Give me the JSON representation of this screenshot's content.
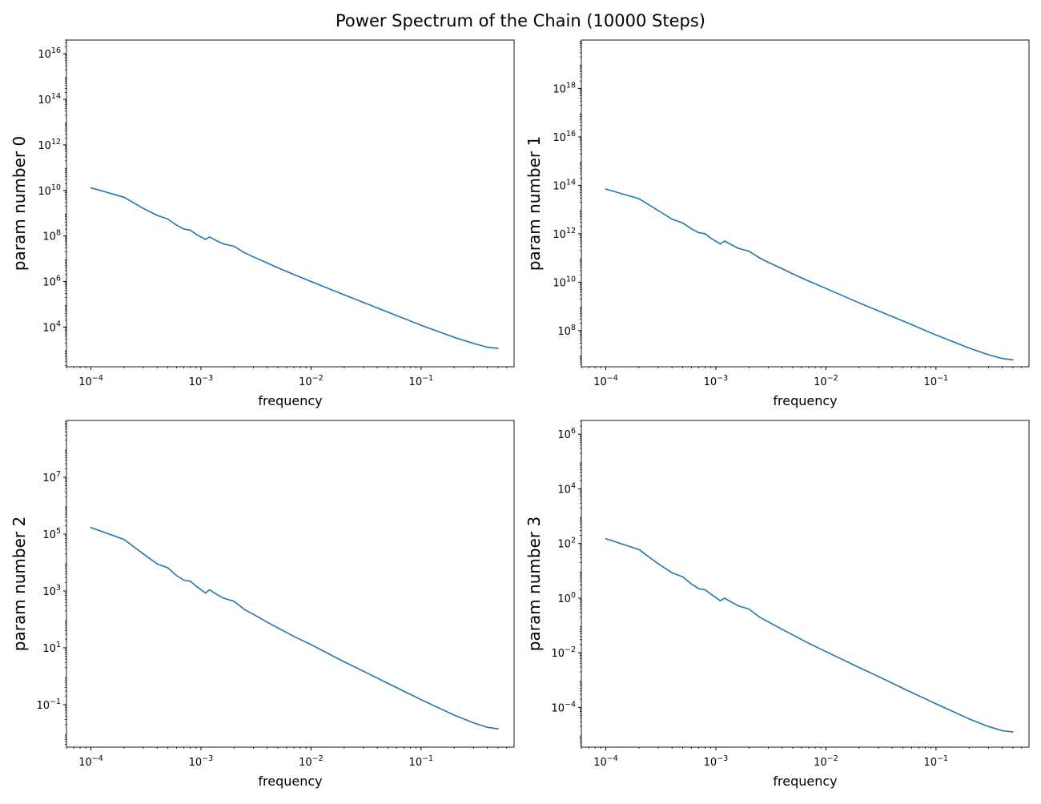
{
  "figure_title": "Power Spectrum of the Chain (10000 Steps)",
  "colors": {
    "line": "#1f77b4",
    "axes": "#000000",
    "background": "#ffffff"
  },
  "chart_data": [
    {
      "type": "line",
      "scale": "log-log",
      "xlabel": "frequency",
      "ylabel": "param number 0",
      "xlim": [
        6e-05,
        0.7
      ],
      "ylim": [
        180,
        40000000000000000
      ],
      "x_ticks": [
        {
          "value": 0.0001,
          "base": "10",
          "exp": "−4"
        },
        {
          "value": 0.001,
          "base": "10",
          "exp": "−3"
        },
        {
          "value": 0.01,
          "base": "10",
          "exp": "−2"
        },
        {
          "value": 0.1,
          "base": "10",
          "exp": "−1"
        }
      ],
      "y_ticks": [
        {
          "value": 10000,
          "base": "10",
          "exp": "4"
        },
        {
          "value": 1000000,
          "base": "10",
          "exp": "6"
        },
        {
          "value": 100000000,
          "base": "10",
          "exp": "8"
        },
        {
          "value": 10000000000,
          "base": "10",
          "exp": "10"
        },
        {
          "value": 1000000000000,
          "base": "10",
          "exp": "12"
        },
        {
          "value": 100000000000000,
          "base": "10",
          "exp": "14"
        },
        {
          "value": 10000000000000000,
          "base": "10",
          "exp": "16"
        }
      ],
      "series": [
        {
          "x": [
            0.0001,
            0.0002,
            0.0003,
            0.0004,
            0.0005,
            0.0006,
            0.0007,
            0.0008,
            0.0009,
            0.0011,
            0.0012,
            0.0014,
            0.0016,
            0.002,
            0.0025,
            0.003,
            0.004,
            0.005,
            0.007,
            0.01,
            0.02,
            0.03,
            0.05,
            0.1,
            0.2,
            0.3,
            0.4,
            0.5
          ],
          "y": [
            13000000000,
            5000000000,
            1600000000,
            800000000,
            550000000,
            300000000,
            200000000,
            180000000,
            120000000,
            70000000,
            90000000,
            60000000,
            45000000,
            35000000,
            18000000,
            12000000,
            6500000,
            4000000,
            2000000,
            1000000,
            260000,
            120000,
            45000,
            12000,
            3500,
            1900,
            1300,
            1150
          ]
        }
      ]
    },
    {
      "type": "line",
      "scale": "log-log",
      "xlabel": "frequency",
      "ylabel": "param number 1",
      "xlim": [
        6e-05,
        0.7
      ],
      "ylim": [
        3200000,
        100000000000000000000
      ],
      "x_ticks": [
        {
          "value": 0.0001,
          "base": "10",
          "exp": "−4"
        },
        {
          "value": 0.001,
          "base": "10",
          "exp": "−3"
        },
        {
          "value": 0.01,
          "base": "10",
          "exp": "−2"
        },
        {
          "value": 0.1,
          "base": "10",
          "exp": "−1"
        }
      ],
      "y_ticks": [
        {
          "value": 100000000,
          "base": "10",
          "exp": "8"
        },
        {
          "value": 10000000000,
          "base": "10",
          "exp": "10"
        },
        {
          "value": 1000000000000,
          "base": "10",
          "exp": "12"
        },
        {
          "value": 100000000000000,
          "base": "10",
          "exp": "14"
        },
        {
          "value": 10000000000000000,
          "base": "10",
          "exp": "16"
        },
        {
          "value": 1000000000000000000,
          "base": "10",
          "exp": "18"
        }
      ],
      "series": [
        {
          "x": [
            0.0001,
            0.0002,
            0.0003,
            0.0004,
            0.0005,
            0.0006,
            0.0007,
            0.0008,
            0.0009,
            0.0011,
            0.0012,
            0.0014,
            0.0016,
            0.002,
            0.0025,
            0.003,
            0.004,
            0.005,
            0.007,
            0.01,
            0.02,
            0.03,
            0.05,
            0.1,
            0.2,
            0.3,
            0.4,
            0.5
          ],
          "y": [
            70000000000000,
            28000000000000,
            9000000000000,
            4000000000000,
            2800000000000,
            1600000000000,
            1100000000000,
            1000000000000,
            650000000000,
            380000000000,
            500000000000,
            340000000000,
            250000000000,
            190000000000,
            100000000000,
            66000000000,
            36000000000,
            22000000000,
            11000000000,
            5500000000,
            1400000000,
            650000000,
            250000000,
            66000000,
            19000000,
            10000000,
            7000000,
            6200000
          ]
        }
      ]
    },
    {
      "type": "line",
      "scale": "log-log",
      "xlabel": "frequency",
      "ylabel": "param number 2",
      "xlim": [
        6e-05,
        0.7
      ],
      "ylim": [
        0.0032,
        1000000000
      ],
      "x_ticks": [
        {
          "value": 0.0001,
          "base": "10",
          "exp": "−4"
        },
        {
          "value": 0.001,
          "base": "10",
          "exp": "−3"
        },
        {
          "value": 0.01,
          "base": "10",
          "exp": "−2"
        },
        {
          "value": 0.1,
          "base": "10",
          "exp": "−1"
        }
      ],
      "y_ticks": [
        {
          "value": 0.1,
          "base": "10",
          "exp": "−1"
        },
        {
          "value": 10,
          "base": "10",
          "exp": "1"
        },
        {
          "value": 1000,
          "base": "10",
          "exp": "3"
        },
        {
          "value": 100000,
          "base": "10",
          "exp": "5"
        },
        {
          "value": 10000000,
          "base": "10",
          "exp": "7"
        }
      ],
      "series": [
        {
          "x": [
            0.0001,
            0.0002,
            0.0003,
            0.0004,
            0.0005,
            0.0006,
            0.0007,
            0.0008,
            0.0009,
            0.0011,
            0.0012,
            0.0014,
            0.0016,
            0.002,
            0.0025,
            0.003,
            0.004,
            0.005,
            0.007,
            0.01,
            0.02,
            0.03,
            0.05,
            0.1,
            0.2,
            0.3,
            0.4,
            0.5
          ],
          "y": [
            170000,
            65000,
            20000,
            9000,
            6500,
            3500,
            2400,
            2200,
            1500,
            850,
            1100,
            750,
            560,
            430,
            220,
            150,
            80,
            50,
            25,
            13,
            3.2,
            1.5,
            0.56,
            0.15,
            0.043,
            0.023,
            0.016,
            0.014
          ]
        }
      ]
    },
    {
      "type": "line",
      "scale": "log-log",
      "xlabel": "frequency",
      "ylabel": "param number 3",
      "xlim": [
        6e-05,
        0.7
      ],
      "ylim": [
        3.5e-06,
        3200000
      ],
      "x_ticks": [
        {
          "value": 0.0001,
          "base": "10",
          "exp": "−4"
        },
        {
          "value": 0.001,
          "base": "10",
          "exp": "−3"
        },
        {
          "value": 0.01,
          "base": "10",
          "exp": "−2"
        },
        {
          "value": 0.1,
          "base": "10",
          "exp": "−1"
        }
      ],
      "y_ticks": [
        {
          "value": 0.0001,
          "base": "10",
          "exp": "−4"
        },
        {
          "value": 0.01,
          "base": "10",
          "exp": "−2"
        },
        {
          "value": 1,
          "base": "10",
          "exp": "0"
        },
        {
          "value": 100,
          "base": "10",
          "exp": "2"
        },
        {
          "value": 10000,
          "base": "10",
          "exp": "4"
        },
        {
          "value": 1000000,
          "base": "10",
          "exp": "6"
        }
      ],
      "series": [
        {
          "x": [
            0.0001,
            0.0002,
            0.0003,
            0.0004,
            0.0005,
            0.0006,
            0.0007,
            0.0008,
            0.0009,
            0.0011,
            0.0012,
            0.0014,
            0.0016,
            0.002,
            0.0025,
            0.003,
            0.004,
            0.005,
            0.007,
            0.01,
            0.02,
            0.03,
            0.05,
            0.1,
            0.2,
            0.3,
            0.4,
            0.5
          ],
          "y": [
            150,
            60,
            18,
            8.5,
            6,
            3.3,
            2.2,
            2,
            1.4,
            0.8,
            1,
            0.7,
            0.52,
            0.4,
            0.2,
            0.135,
            0.072,
            0.045,
            0.022,
            0.011,
            0.0029,
            0.00135,
            0.0005,
            0.000135,
            3.8e-05,
            2e-05,
            1.4e-05,
            1.25e-05
          ]
        }
      ]
    }
  ]
}
